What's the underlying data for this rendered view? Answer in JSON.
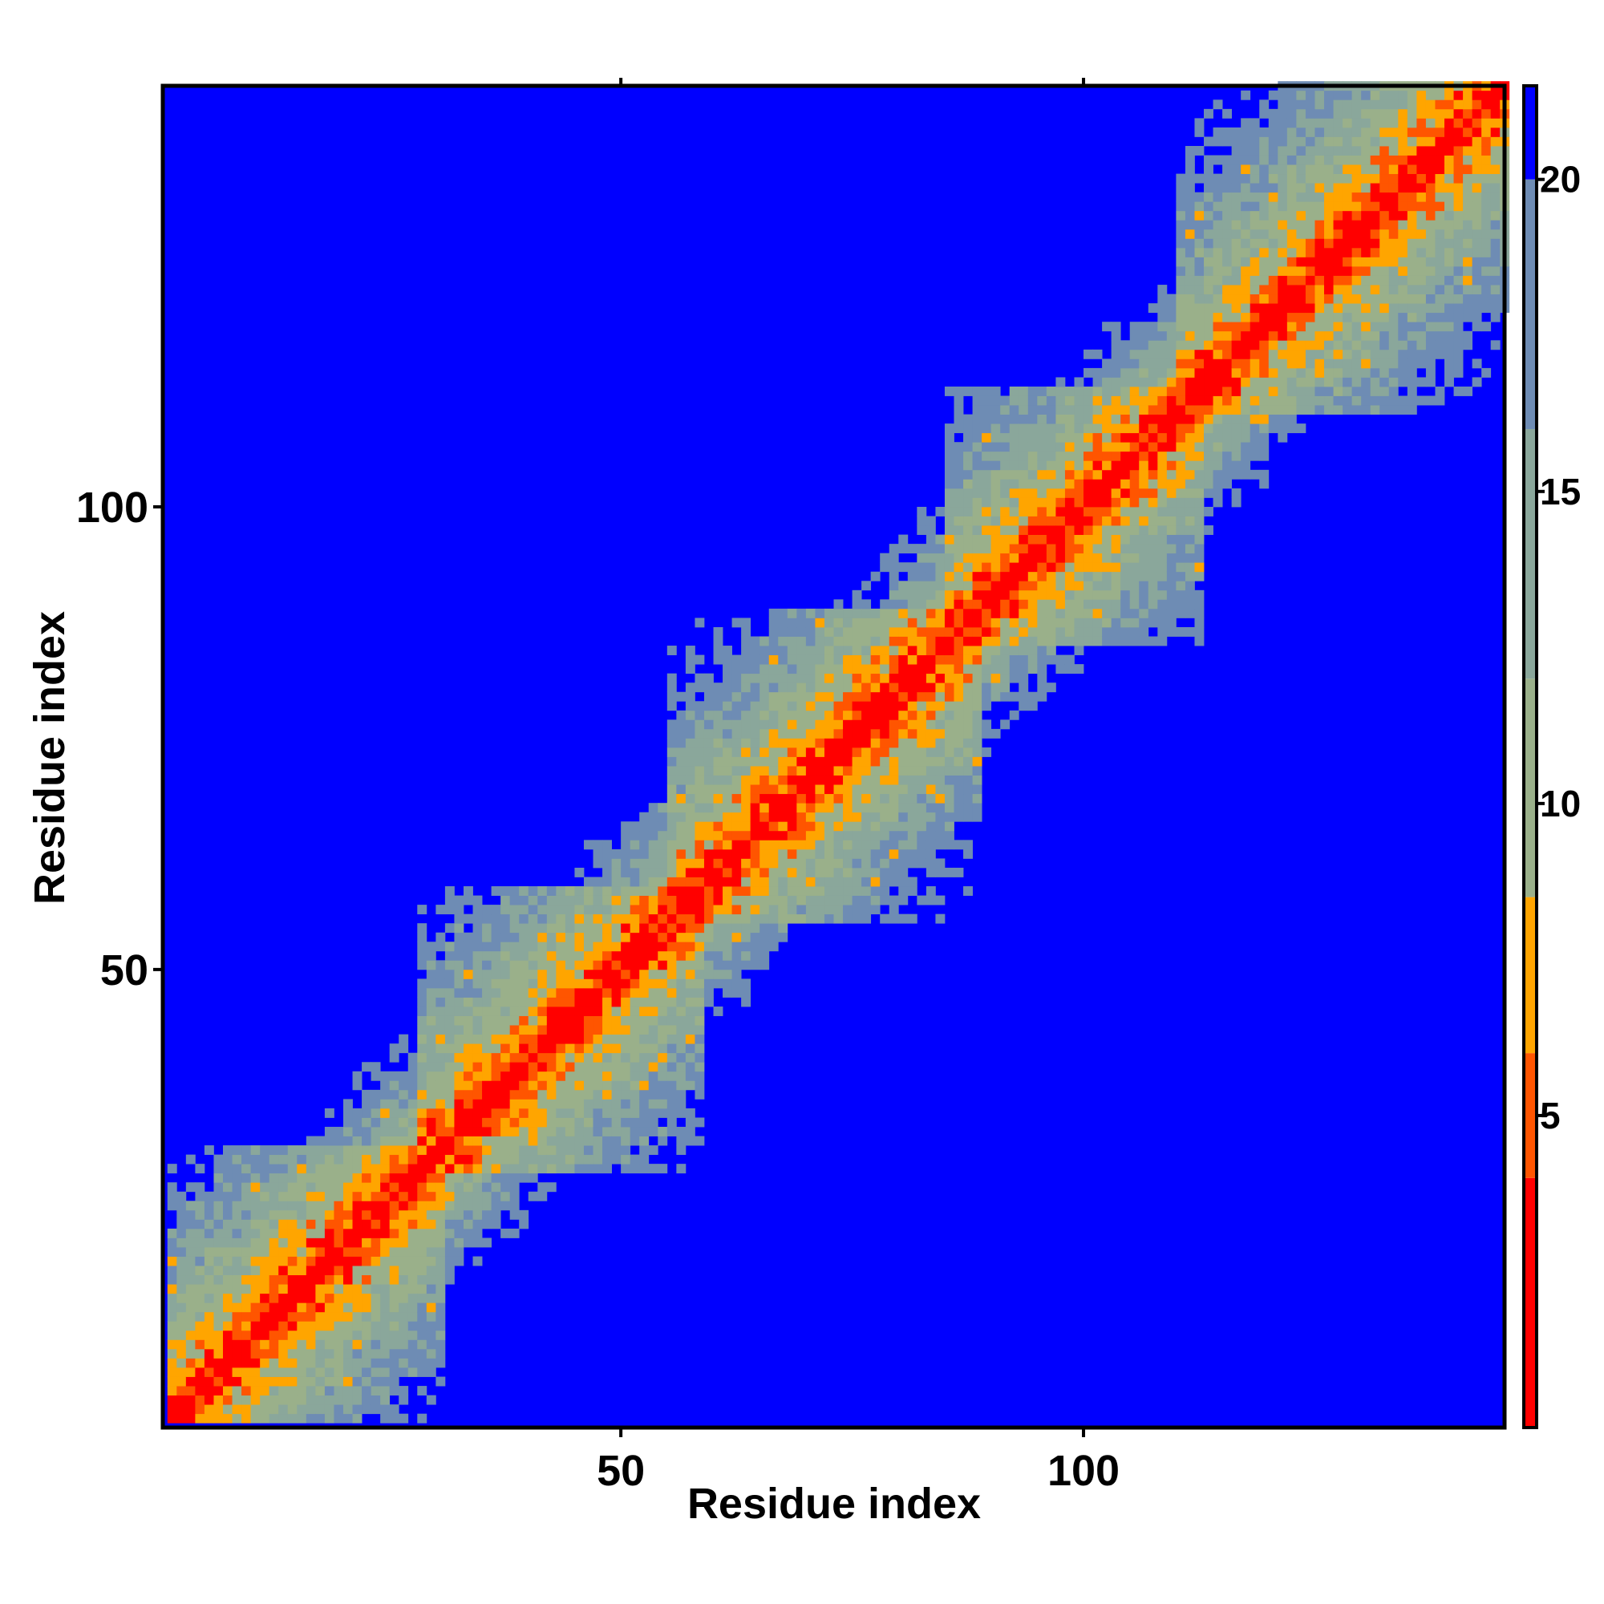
{
  "chart_data": {
    "type": "heatmap",
    "title": "",
    "xlabel": "Residue index",
    "ylabel": "Residue index",
    "n_residues": 145,
    "x_range": [
      1,
      145
    ],
    "y_range": [
      1,
      145
    ],
    "x_ticks": [
      50,
      100
    ],
    "y_ticks": [
      50,
      100
    ],
    "x_tick_labels": [
      "50",
      "100"
    ],
    "y_tick_labels": [
      "50",
      "100"
    ],
    "value_description": "pairwise distance between residues (symmetric matrix, 0 on diagonal); values above the cutoff are saturated to the background color",
    "value_range": [
      0,
      21.5
    ],
    "colorbar": {
      "ticks": [
        5,
        10,
        15,
        20
      ],
      "tick_labels": [
        "5",
        "10",
        "15",
        "20"
      ],
      "range": [
        0,
        21.5
      ],
      "placement": "right",
      "bands": [
        {
          "from": 0,
          "to": 4,
          "color": "#ff0000"
        },
        {
          "from": 4,
          "to": 6,
          "color": "#ff5500"
        },
        {
          "from": 6,
          "to": 8.5,
          "color": "#ffa500"
        },
        {
          "from": 8.5,
          "to": 12,
          "color": "#9ab08a"
        },
        {
          "from": 12,
          "to": 16,
          "color": "#8aa79b"
        },
        {
          "from": 16,
          "to": 20,
          "color": "#6e8cb4"
        },
        {
          "from": 20,
          "to": 21.5,
          "color": "#0000ff"
        }
      ]
    },
    "colors": {
      "background": "#0000ff",
      "diagonal": "#ff0000",
      "near": "#ffa500",
      "mid_green": "#9ab08a",
      "mid_blue": "#6e8cb4"
    },
    "domains": [
      [
        1,
        30
      ],
      [
        28,
        58
      ],
      [
        55,
        88
      ],
      [
        85,
        112
      ],
      [
        110,
        145
      ]
    ],
    "grid": false,
    "legend": "none"
  }
}
